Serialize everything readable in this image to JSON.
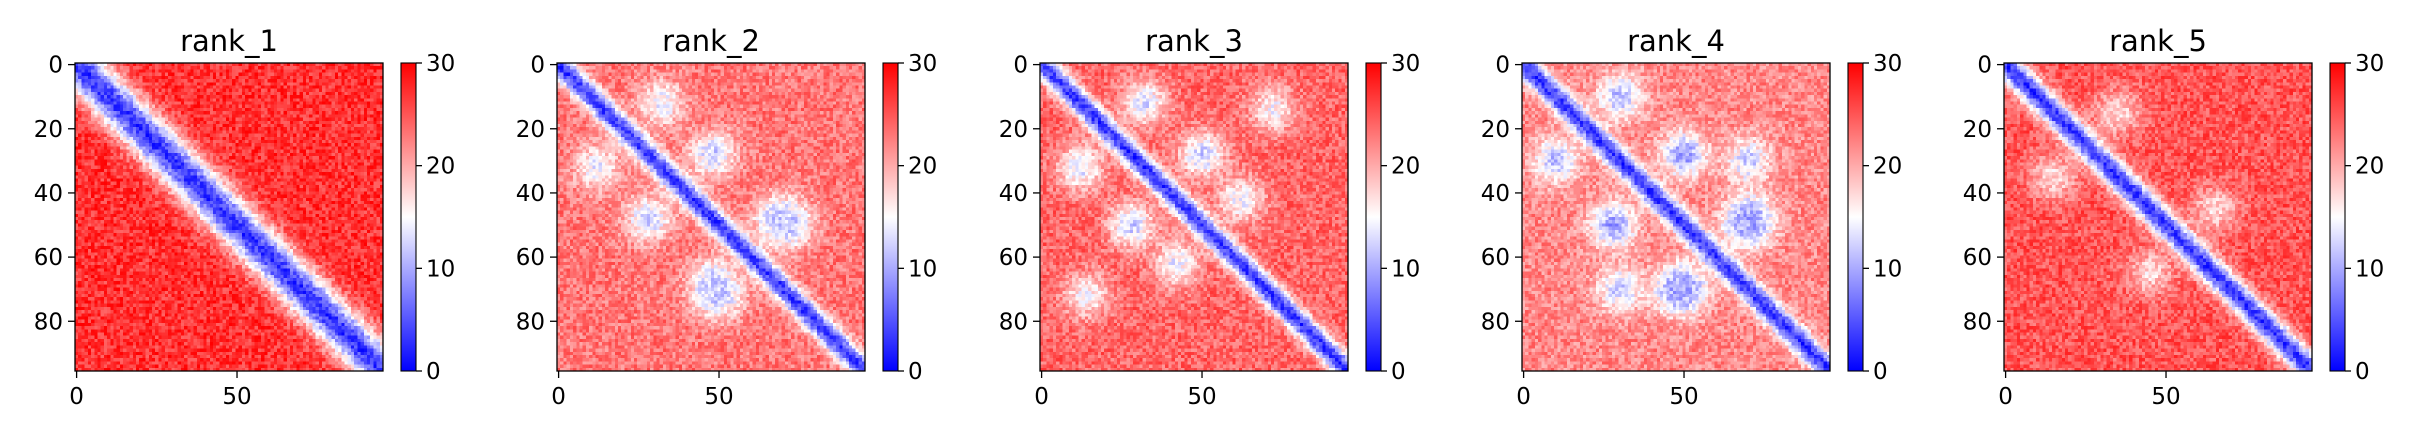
{
  "colors": {
    "low": "#0000ff",
    "mid": "#ffffff",
    "high": "#ff0000",
    "frame": "#000000"
  },
  "chart_data": [
    {
      "type": "heatmap",
      "title": "rank_1",
      "colormap": "bwr",
      "shape": [
        96,
        96
      ],
      "xlim": [
        0,
        95
      ],
      "ylim": [
        95,
        0
      ],
      "xticks": [
        0,
        50
      ],
      "yticks": [
        0,
        20,
        40,
        60,
        80
      ],
      "zlim": [
        0,
        30
      ],
      "colorbar_ticks": [
        0,
        10,
        20,
        30
      ],
      "diagonal_value": 3,
      "background_value": 27,
      "diagonal_bandwidth": 6.5,
      "off_diagonal_features": []
    },
    {
      "type": "heatmap",
      "title": "rank_2",
      "colormap": "bwr",
      "shape": [
        96,
        96
      ],
      "xlim": [
        0,
        95
      ],
      "ylim": [
        95,
        0
      ],
      "xticks": [
        0,
        50
      ],
      "yticks": [
        0,
        20,
        40,
        60,
        80
      ],
      "zlim": [
        0,
        30
      ],
      "colorbar_ticks": [
        0,
        10,
        20,
        30
      ],
      "diagonal_value": 3,
      "background_value": 23,
      "diagonal_bandwidth": 3.5,
      "off_diagonal_features": [
        {
          "row": 12,
          "col": 32,
          "value": 14
        },
        {
          "row": 32,
          "col": 12,
          "value": 14
        },
        {
          "row": 28,
          "col": 48,
          "value": 12
        },
        {
          "row": 48,
          "col": 28,
          "value": 12
        },
        {
          "row": 50,
          "col": 72,
          "value": 12
        },
        {
          "row": 72,
          "col": 50,
          "value": 12
        },
        {
          "row": 68,
          "col": 48,
          "value": 12
        },
        {
          "row": 48,
          "col": 68,
          "value": 12
        }
      ]
    },
    {
      "type": "heatmap",
      "title": "rank_3",
      "colormap": "bwr",
      "shape": [
        96,
        96
      ],
      "xlim": [
        0,
        95
      ],
      "ylim": [
        95,
        0
      ],
      "xticks": [
        0,
        50
      ],
      "yticks": [
        0,
        20,
        40,
        60,
        80
      ],
      "zlim": [
        0,
        30
      ],
      "colorbar_ticks": [
        0,
        10,
        20,
        30
      ],
      "diagonal_value": 3,
      "background_value": 24,
      "diagonal_bandwidth": 3.5,
      "off_diagonal_features": [
        {
          "row": 12,
          "col": 32,
          "value": 13
        },
        {
          "row": 32,
          "col": 12,
          "value": 13
        },
        {
          "row": 28,
          "col": 50,
          "value": 12
        },
        {
          "row": 50,
          "col": 28,
          "value": 12
        },
        {
          "row": 42,
          "col": 62,
          "value": 14
        },
        {
          "row": 62,
          "col": 42,
          "value": 14
        },
        {
          "row": 14,
          "col": 72,
          "value": 15
        },
        {
          "row": 72,
          "col": 14,
          "value": 15
        }
      ]
    },
    {
      "type": "heatmap",
      "title": "rank_4",
      "colormap": "bwr",
      "shape": [
        96,
        96
      ],
      "xlim": [
        0,
        95
      ],
      "ylim": [
        95,
        0
      ],
      "xticks": [
        0,
        50
      ],
      "yticks": [
        0,
        20,
        40,
        60,
        80
      ],
      "zlim": [
        0,
        30
      ],
      "colorbar_ticks": [
        0,
        10,
        20,
        30
      ],
      "diagonal_value": 3,
      "background_value": 22,
      "diagonal_bandwidth": 3.5,
      "off_diagonal_features": [
        {
          "row": 10,
          "col": 30,
          "value": 11
        },
        {
          "row": 30,
          "col": 10,
          "value": 11
        },
        {
          "row": 28,
          "col": 50,
          "value": 9
        },
        {
          "row": 50,
          "col": 28,
          "value": 9
        },
        {
          "row": 48,
          "col": 70,
          "value": 10
        },
        {
          "row": 70,
          "col": 48,
          "value": 10
        },
        {
          "row": 70,
          "col": 50,
          "value": 10
        },
        {
          "row": 50,
          "col": 70,
          "value": 10
        },
        {
          "row": 30,
          "col": 70,
          "value": 12
        },
        {
          "row": 70,
          "col": 30,
          "value": 12
        }
      ]
    },
    {
      "type": "heatmap",
      "title": "rank_5",
      "colormap": "bwr",
      "shape": [
        96,
        96
      ],
      "xlim": [
        0,
        95
      ],
      "ylim": [
        95,
        0
      ],
      "xticks": [
        0,
        50
      ],
      "yticks": [
        0,
        20,
        40,
        60,
        80
      ],
      "zlim": [
        0,
        30
      ],
      "colorbar_ticks": [
        0,
        10,
        20,
        30
      ],
      "diagonal_value": 3,
      "background_value": 25,
      "diagonal_bandwidth": 4,
      "off_diagonal_features": [
        {
          "row": 15,
          "col": 35,
          "value": 17
        },
        {
          "row": 35,
          "col": 15,
          "value": 17
        },
        {
          "row": 45,
          "col": 65,
          "value": 17
        },
        {
          "row": 65,
          "col": 45,
          "value": 17
        }
      ]
    }
  ]
}
